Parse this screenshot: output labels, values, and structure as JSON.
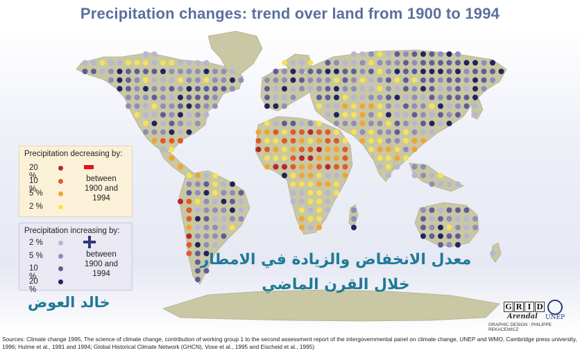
{
  "title": "Precipitation changes: trend over land from 1900 to 1994",
  "colors": {
    "land": "#c9c7a4",
    "dec20": "#b8262e",
    "dec10": "#e05a2b",
    "dec5": "#f0a531",
    "dec2": "#f4e25a",
    "inc2": "#b7b6d2",
    "inc5": "#8e8dbb",
    "inc10": "#5d5d9a",
    "inc20": "#1f2460",
    "title": "#5a6f9e",
    "arabic": "#1f7a96"
  },
  "legend_decrease": {
    "title": "Precipitation decreasing by:",
    "between": "between",
    "period": "1900 and 1994",
    "rows": [
      {
        "label": "20 %",
        "color": "#b8262e"
      },
      {
        "label": "10 %",
        "color": "#e05a2b"
      },
      {
        "label": "5 %",
        "color": "#f0a531"
      },
      {
        "label": "2 %",
        "color": "#f4e25a"
      }
    ]
  },
  "legend_increase": {
    "title": "Precipitation increasing by:",
    "between": "between",
    "period": "1900 and 1994",
    "rows": [
      {
        "label": "2 %",
        "color": "#b7b6d2"
      },
      {
        "label": "5 %",
        "color": "#8e8dbb"
      },
      {
        "label": "10 %",
        "color": "#5d5d9a"
      },
      {
        "label": "20 %",
        "color": "#1f2460"
      }
    ]
  },
  "arabic_caption": {
    "line1": "معدل الانخفاض والزيادة في الامطار",
    "line2": "خلال القرن الماضي"
  },
  "author": "خالد العوض",
  "logo": {
    "grid_letters": [
      "G",
      "R",
      "I",
      "D"
    ],
    "arendal": "Arendal",
    "unep": "UNEP",
    "design_credit": "GRAPHIC DESIGN : PHILIPPE REKACEWICZ"
  },
  "sources": "Sources: Climate change 1995, The science of climate change, contribution of working group 1 to the second assessment report of the intergovernmental panel on climate change, UNEP and WMO, Cambridge press university, 1996; Hulme et al., 1991 and 1994; Global Historical Climate Network (GHCN), Vose et al., 1995 and Eischeid et al., 1995)"
}
